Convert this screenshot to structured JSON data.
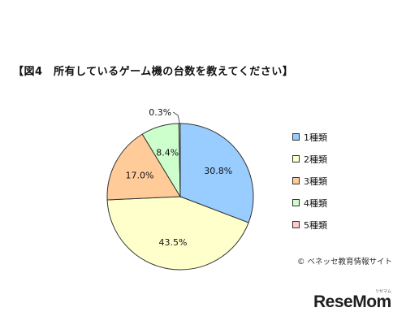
{
  "page": {
    "title": "【図4　所有しているゲーム機の台数を教えてください】",
    "copyright": "© ベネッセ教育情報サイト",
    "logo": "ReseMom",
    "logo_kana": "リセマム"
  },
  "colors": {
    "slice_1": "#99ccff",
    "slice_2": "#ffffcc",
    "slice_3": "#ffcc99",
    "slice_4": "#ccffcc",
    "slice_5": "#ffcccc",
    "outline": "#333333"
  },
  "chart_data": {
    "type": "pie",
    "title": "【図4　所有しているゲーム機の台数を教えてください】",
    "categories": [
      "1種類",
      "2種類",
      "3種類",
      "4種類",
      "5種類"
    ],
    "values": [
      30.8,
      43.5,
      17.0,
      8.4,
      0.3
    ],
    "labels": [
      "30.8%",
      "43.5%",
      "17.0%",
      "8.4%",
      "0.3%"
    ],
    "start_angle": "12 o'clock",
    "direction": "clockwise",
    "legend_position": "right"
  }
}
